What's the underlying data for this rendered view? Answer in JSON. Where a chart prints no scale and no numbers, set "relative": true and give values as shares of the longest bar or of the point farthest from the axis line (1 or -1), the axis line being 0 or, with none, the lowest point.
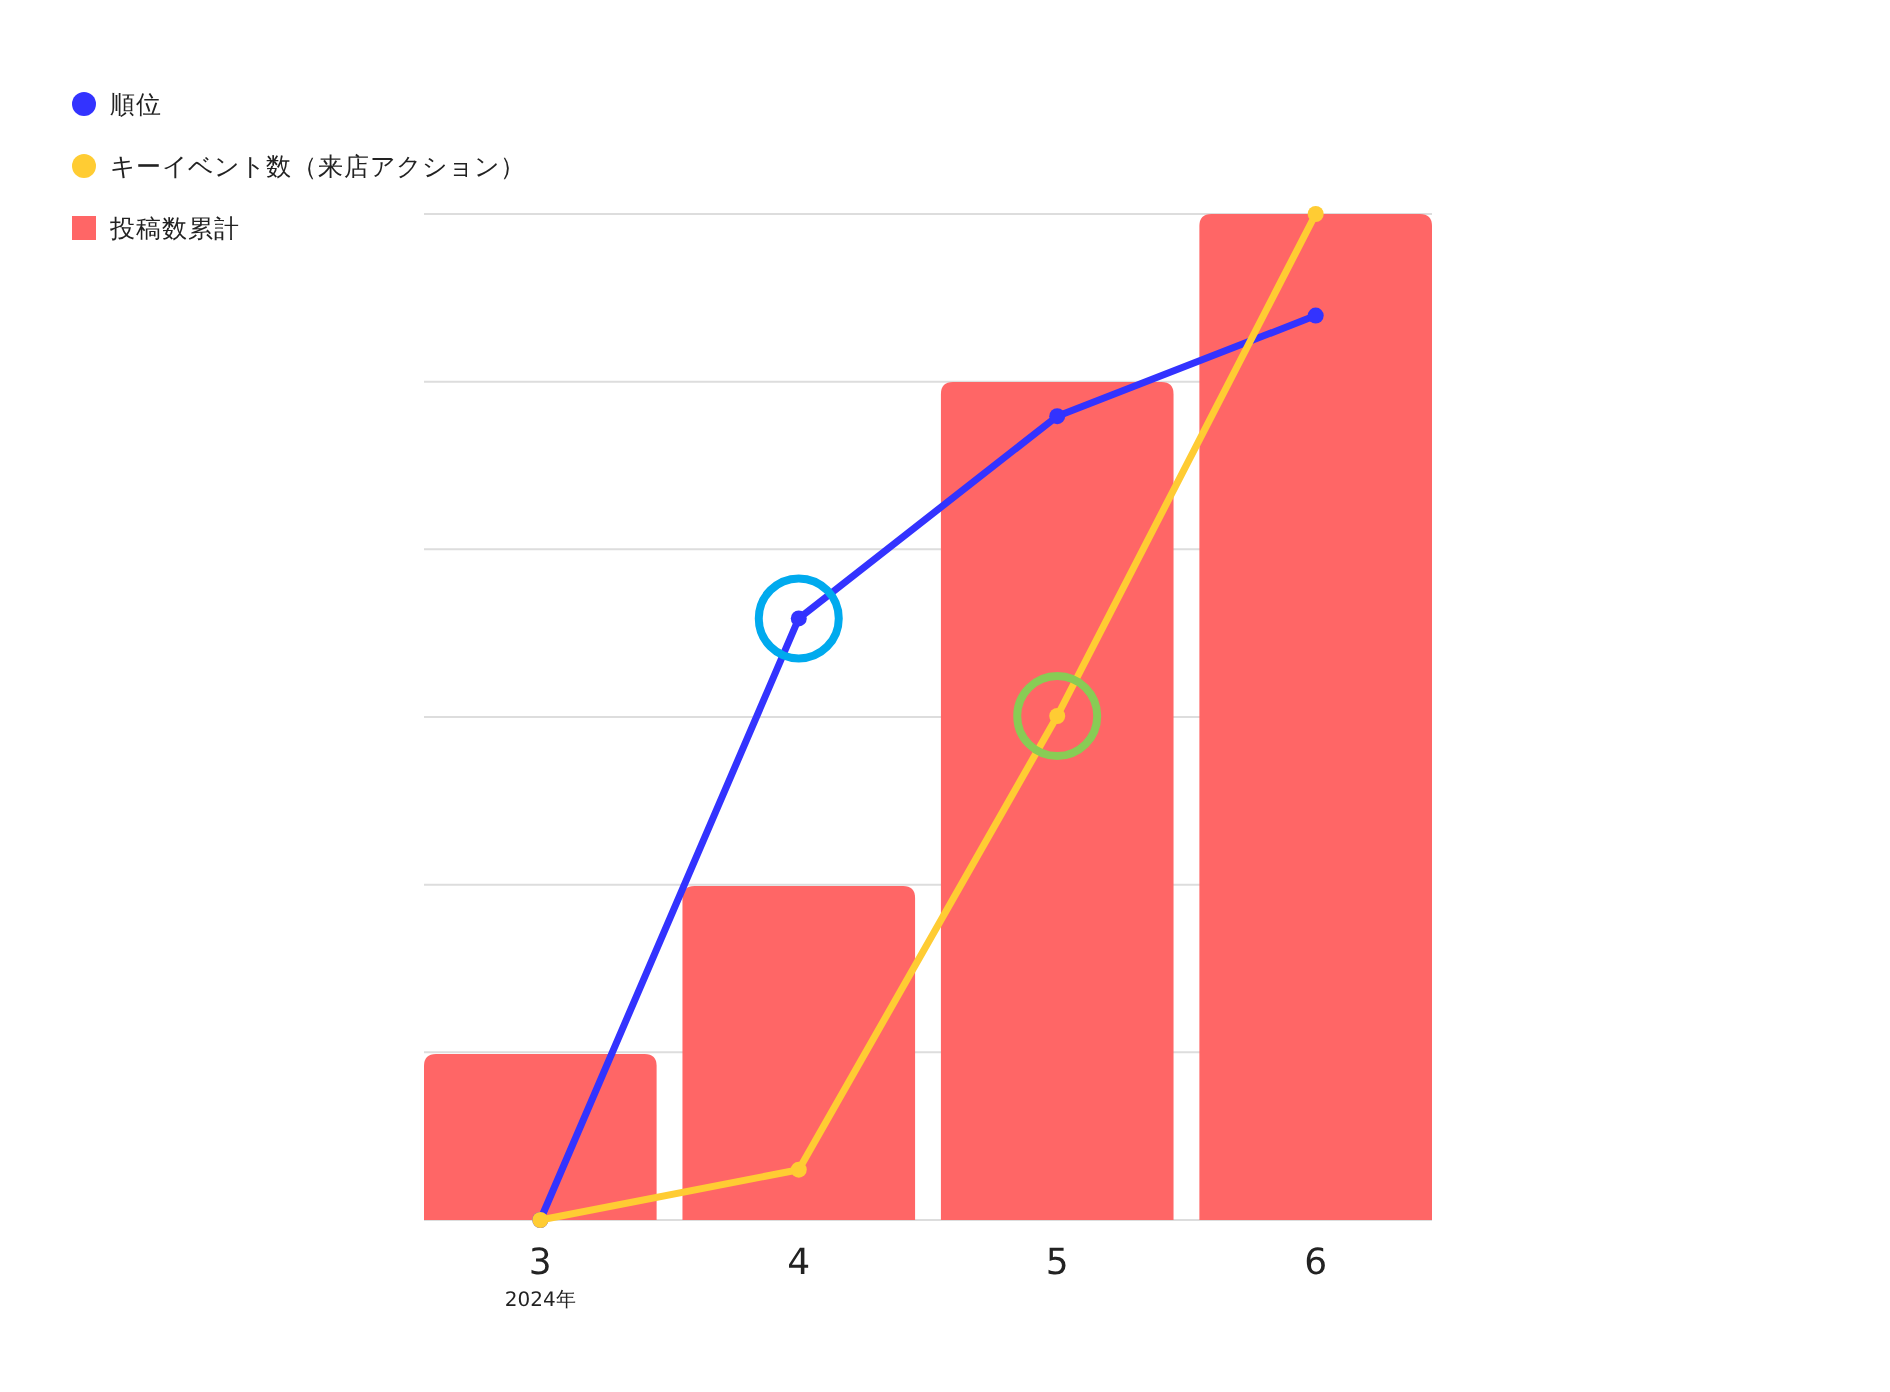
{
  "chart_data": {
    "type": "bar",
    "relative": true,
    "categories": [
      "3",
      "4",
      "5",
      "6"
    ],
    "series": [
      {
        "name": "順位",
        "type": "line",
        "color": "#3333ff",
        "values": [
          0,
          0.598,
          0.799,
          0.899
        ]
      },
      {
        "name": "キーイベント数（来店アクション）",
        "type": "line",
        "color": "#ffcc33",
        "values": [
          0,
          0.05,
          0.501,
          1.0
        ]
      },
      {
        "name": "投稿数累計",
        "color": "#ff6666",
        "values": [
          0.165,
          0.332,
          0.833,
          1.0
        ]
      }
    ],
    "annotations": [
      "2024年"
    ],
    "grid": "y",
    "legend": "top left",
    "marker": "circle",
    "line_style": "solid"
  }
}
